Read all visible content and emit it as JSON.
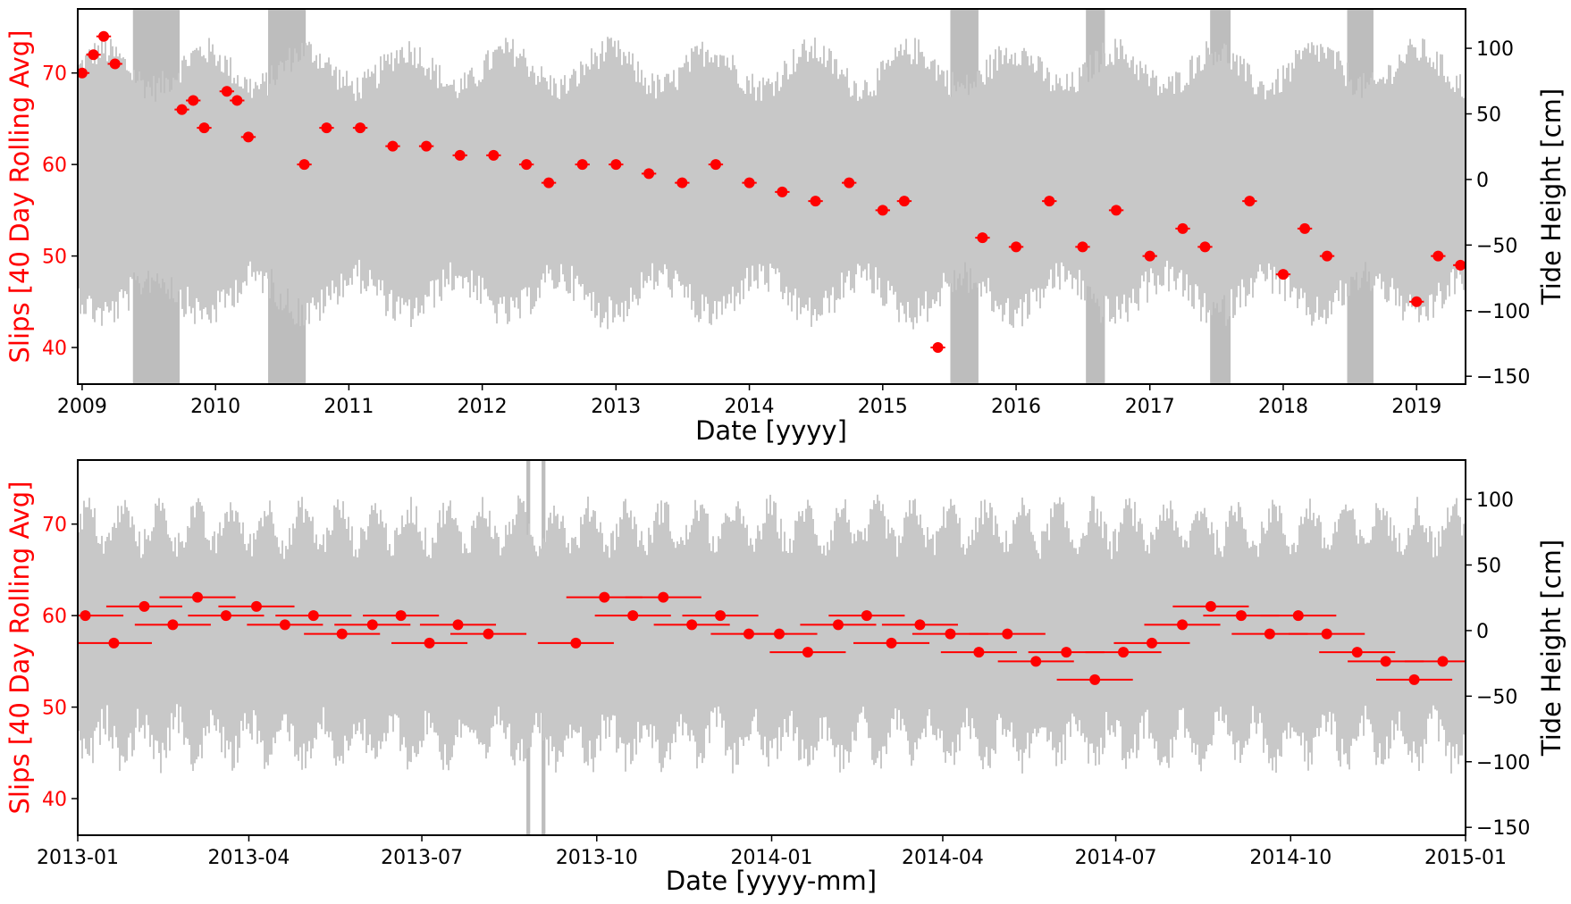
{
  "chart_data": [
    {
      "type": "scatter",
      "xlabel": "Date [yyyy]",
      "ylabel_left": "Slips [40 Day Rolling Avg]",
      "ylabel_right": "Tide Height [cm]",
      "x_range": [
        "2008-12-20",
        "2019-05-15"
      ],
      "y_left_range": [
        36,
        77
      ],
      "y_right_range": [
        -156,
        130
      ],
      "x_ticks": [
        "2009",
        "2010",
        "2011",
        "2012",
        "2013",
        "2014",
        "2015",
        "2016",
        "2017",
        "2018",
        "2019"
      ],
      "y_left_ticks": [
        40,
        50,
        60,
        70
      ],
      "y_right_ticks": [
        -150,
        -100,
        -50,
        0,
        50,
        100
      ],
      "tide_band": {
        "typical_low": -85,
        "typical_high": 85
      },
      "gap_periods": [
        [
          "2009-05-20",
          "2009-09-25"
        ],
        [
          "2010-05-25",
          "2010-09-05"
        ],
        [
          "2015-07-05",
          "2015-09-20"
        ],
        [
          "2016-07-10",
          "2016-08-31"
        ],
        [
          "2017-06-15",
          "2017-08-10"
        ],
        [
          "2018-06-25",
          "2018-09-05"
        ]
      ],
      "series": [
        {
          "values": [
            {
              "x": "2009-01",
              "y": 70
            },
            {
              "x": "2009-02",
              "y": 72
            },
            {
              "x": "2009-03",
              "y": 74
            },
            {
              "x": "2009-04",
              "y": 71
            },
            {
              "x": "2009-10",
              "y": 66
            },
            {
              "x": "2009-11",
              "y": 67
            },
            {
              "x": "2009-12",
              "y": 64
            },
            {
              "x": "2010-02",
              "y": 68
            },
            {
              "x": "2010-03",
              "y": 67
            },
            {
              "x": "2010-04",
              "y": 63
            },
            {
              "x": "2010-09",
              "y": 60
            },
            {
              "x": "2010-11",
              "y": 64
            },
            {
              "x": "2011-02",
              "y": 64
            },
            {
              "x": "2011-05",
              "y": 62
            },
            {
              "x": "2011-08",
              "y": 62
            },
            {
              "x": "2011-11",
              "y": 61
            },
            {
              "x": "2012-02",
              "y": 61
            },
            {
              "x": "2012-05",
              "y": 60
            },
            {
              "x": "2012-07",
              "y": 58
            },
            {
              "x": "2012-10",
              "y": 60
            },
            {
              "x": "2013-01",
              "y": 60
            },
            {
              "x": "2013-04",
              "y": 59
            },
            {
              "x": "2013-07",
              "y": 58
            },
            {
              "x": "2013-10",
              "y": 60
            },
            {
              "x": "2014-01",
              "y": 58
            },
            {
              "x": "2014-04",
              "y": 57
            },
            {
              "x": "2014-07",
              "y": 56
            },
            {
              "x": "2014-10",
              "y": 58
            },
            {
              "x": "2015-01",
              "y": 55
            },
            {
              "x": "2015-03",
              "y": 56
            },
            {
              "x": "2015-06",
              "y": 40
            },
            {
              "x": "2015-10",
              "y": 52
            },
            {
              "x": "2016-01",
              "y": 51
            },
            {
              "x": "2016-04",
              "y": 56
            },
            {
              "x": "2016-07",
              "y": 51
            },
            {
              "x": "2016-10",
              "y": 55
            },
            {
              "x": "2017-01",
              "y": 50
            },
            {
              "x": "2017-04",
              "y": 53
            },
            {
              "x": "2017-06",
              "y": 51
            },
            {
              "x": "2017-10",
              "y": 56
            },
            {
              "x": "2018-01",
              "y": 48
            },
            {
              "x": "2018-03",
              "y": 53
            },
            {
              "x": "2018-05",
              "y": 50
            },
            {
              "x": "2019-01",
              "y": 45
            },
            {
              "x": "2019-03",
              "y": 50
            },
            {
              "x": "2019-05",
              "y": 49
            }
          ]
        }
      ]
    },
    {
      "type": "scatter",
      "xlabel": "Date [yyyy-mm]",
      "ylabel_left": "Slips [40 Day Rolling Avg]",
      "ylabel_right": "Tide Height [cm]",
      "x_range": [
        "2013-01-01",
        "2015-01-01"
      ],
      "y_left_range": [
        36,
        77
      ],
      "y_right_range": [
        -156,
        130
      ],
      "x_ticks": [
        "2013-01",
        "2013-04",
        "2013-07",
        "2013-10",
        "2014-01",
        "2014-04",
        "2014-07",
        "2014-10",
        "2015-01"
      ],
      "y_left_ticks": [
        40,
        50,
        60,
        70
      ],
      "y_right_ticks": [
        -150,
        -100,
        -50,
        0,
        50,
        100
      ],
      "tide_band": {
        "typical_low": -80,
        "typical_high": 80
      },
      "gap_periods": [
        [
          "2013-08-25",
          "2013-08-27"
        ],
        [
          "2013-09-02",
          "2013-09-04"
        ]
      ],
      "series": [
        {
          "values": [
            {
              "x": "2013-01-05",
              "y": 60
            },
            {
              "x": "2013-01-20",
              "y": 57
            },
            {
              "x": "2013-02-05",
              "y": 61
            },
            {
              "x": "2013-02-20",
              "y": 59
            },
            {
              "x": "2013-03-05",
              "y": 62
            },
            {
              "x": "2013-03-20",
              "y": 60
            },
            {
              "x": "2013-04-05",
              "y": 61
            },
            {
              "x": "2013-04-20",
              "y": 59
            },
            {
              "x": "2013-05-05",
              "y": 60
            },
            {
              "x": "2013-05-20",
              "y": 58
            },
            {
              "x": "2013-06-05",
              "y": 59
            },
            {
              "x": "2013-06-20",
              "y": 60
            },
            {
              "x": "2013-07-05",
              "y": 57
            },
            {
              "x": "2013-07-20",
              "y": 59
            },
            {
              "x": "2013-08-05",
              "y": 58
            },
            {
              "x": "2013-09-20",
              "y": 57
            },
            {
              "x": "2013-10-05",
              "y": 62
            },
            {
              "x": "2013-10-20",
              "y": 60
            },
            {
              "x": "2013-11-05",
              "y": 62
            },
            {
              "x": "2013-11-20",
              "y": 59
            },
            {
              "x": "2013-12-05",
              "y": 60
            },
            {
              "x": "2013-12-20",
              "y": 58
            },
            {
              "x": "2014-01-05",
              "y": 58
            },
            {
              "x": "2014-01-20",
              "y": 56
            },
            {
              "x": "2014-02-05",
              "y": 59
            },
            {
              "x": "2014-02-20",
              "y": 60
            },
            {
              "x": "2014-03-05",
              "y": 57
            },
            {
              "x": "2014-03-20",
              "y": 59
            },
            {
              "x": "2014-04-05",
              "y": 58
            },
            {
              "x": "2014-04-20",
              "y": 56
            },
            {
              "x": "2014-05-05",
              "y": 58
            },
            {
              "x": "2014-05-20",
              "y": 55
            },
            {
              "x": "2014-06-05",
              "y": 56
            },
            {
              "x": "2014-06-20",
              "y": 53
            },
            {
              "x": "2014-07-05",
              "y": 56
            },
            {
              "x": "2014-07-20",
              "y": 57
            },
            {
              "x": "2014-08-05",
              "y": 59
            },
            {
              "x": "2014-08-20",
              "y": 61
            },
            {
              "x": "2014-09-05",
              "y": 60
            },
            {
              "x": "2014-09-20",
              "y": 58
            },
            {
              "x": "2014-10-05",
              "y": 60
            },
            {
              "x": "2014-10-20",
              "y": 58
            },
            {
              "x": "2014-11-05",
              "y": 56
            },
            {
              "x": "2014-11-20",
              "y": 55
            },
            {
              "x": "2014-12-05",
              "y": 53
            },
            {
              "x": "2014-12-20",
              "y": 55
            }
          ]
        }
      ]
    }
  ]
}
